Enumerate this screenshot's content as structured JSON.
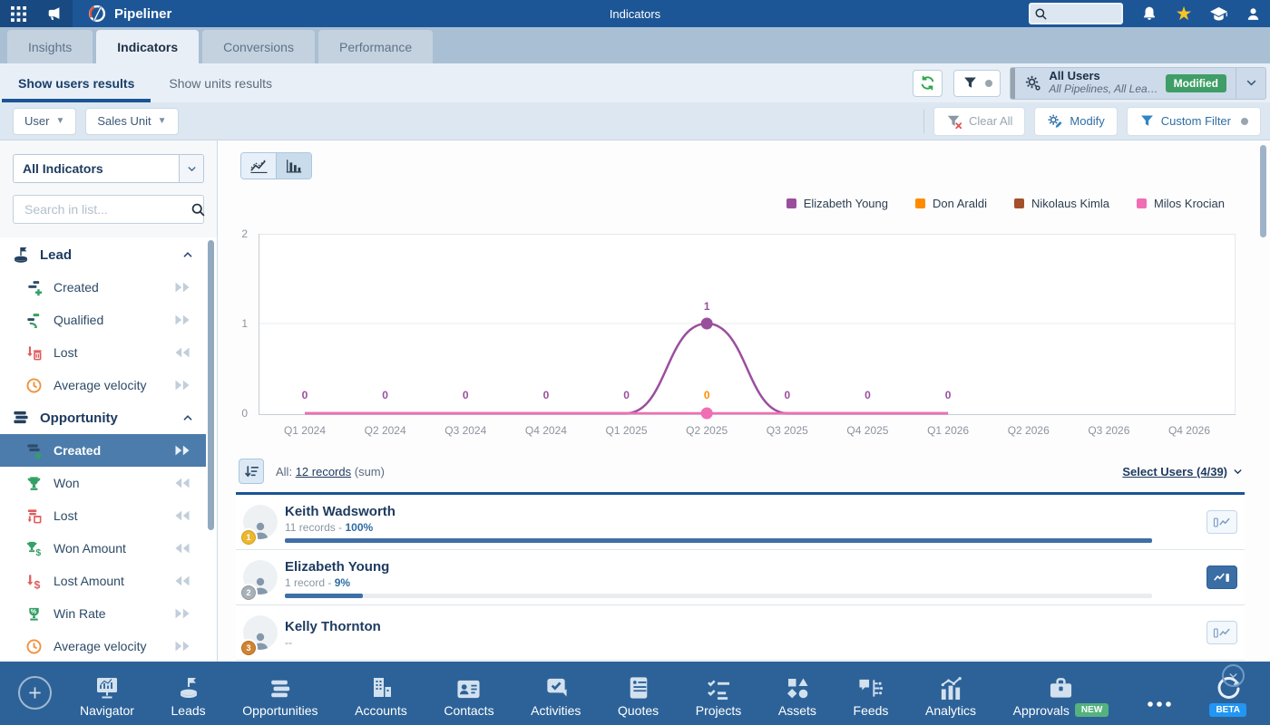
{
  "theme": {
    "topbar": "#1d5696",
    "tabbar": "#a9bfd4",
    "panel": "#e9eff6",
    "filterbar": "#dce7f1",
    "nav": "#2d6298",
    "accent": "#2e6da4",
    "selected_item": "#4b7cab",
    "modified_badge": "#3f9e67"
  },
  "topbar": {
    "app_name": "Pipeliner",
    "page_title": "Indicators",
    "search_value": ""
  },
  "tabs": [
    {
      "label": "Insights",
      "active": false
    },
    {
      "label": "Indicators",
      "active": true
    },
    {
      "label": "Conversions",
      "active": false
    },
    {
      "label": "Performance",
      "active": false
    }
  ],
  "view_tabs": [
    {
      "label": "Show users results",
      "active": true
    },
    {
      "label": "Show units results",
      "active": false
    }
  ],
  "profile_selector": {
    "title": "All Users",
    "subtitle": "All Pipelines, All Lea…",
    "badge": "Modified"
  },
  "filter_bar": {
    "field_buttons": [
      {
        "label": "User"
      },
      {
        "label": "Sales Unit"
      }
    ],
    "actions": [
      {
        "label": "Clear All",
        "disabled": true
      },
      {
        "label": "Modify",
        "disabled": false
      },
      {
        "label": "Custom Filter",
        "disabled": false,
        "dot": true
      }
    ]
  },
  "sidebar": {
    "indicator_select": "All Indicators",
    "search_placeholder": "Search in list...",
    "sections": [
      {
        "label": "Lead",
        "icon": "flag-base",
        "items": [
          {
            "label": "Created",
            "icon": "lead-created",
            "arrows": "right",
            "selected": false
          },
          {
            "label": "Qualified",
            "icon": "lead-qualified",
            "arrows": "right",
            "selected": false
          },
          {
            "label": "Lost",
            "icon": "lead-lost",
            "arrows": "left",
            "selected": false
          },
          {
            "label": "Average velocity",
            "icon": "clock",
            "arrows": "right",
            "selected": false
          }
        ]
      },
      {
        "label": "Opportunity",
        "icon": "stacked-bars",
        "items": [
          {
            "label": "Created",
            "icon": "opp-created",
            "arrows": "right",
            "selected": true
          },
          {
            "label": "Won",
            "icon": "trophy",
            "arrows": "left",
            "selected": false
          },
          {
            "label": "Lost",
            "icon": "opp-lost",
            "arrows": "left",
            "selected": false
          },
          {
            "label": "Won Amount",
            "icon": "trophy-dollar",
            "arrows": "left",
            "selected": false
          },
          {
            "label": "Lost Amount",
            "icon": "arrow-dollar",
            "arrows": "left",
            "selected": false
          },
          {
            "label": "Win Rate",
            "icon": "trophy-percent",
            "arrows": "right",
            "selected": false
          },
          {
            "label": "Average velocity",
            "icon": "clock",
            "arrows": "right",
            "selected": false
          }
        ]
      }
    ]
  },
  "chart_data": {
    "type": "line",
    "x": [
      "Q1 2024",
      "Q2 2024",
      "Q3 2024",
      "Q4 2024",
      "Q1 2025",
      "Q2 2025",
      "Q3 2025",
      "Q4 2025",
      "Q1 2026",
      "Q2 2026",
      "Q3 2026",
      "Q4 2026"
    ],
    "ylim": [
      0,
      2
    ],
    "yticks": [
      0,
      1,
      2
    ],
    "series": [
      {
        "name": "Elizabeth Young",
        "color": "#9a4f9d",
        "values": [
          0,
          0,
          0,
          0,
          0,
          1,
          0,
          0,
          0,
          null,
          null,
          null
        ]
      },
      {
        "name": "Don Araldi",
        "color": "#ff8c00",
        "values": [
          0,
          0,
          0,
          0,
          0,
          0,
          0,
          0,
          0,
          null,
          null,
          null
        ]
      },
      {
        "name": "Nikolaus Kimla",
        "color": "#a3512b",
        "values": [
          0,
          0,
          0,
          0,
          0,
          0,
          0,
          0,
          0,
          null,
          null,
          null
        ]
      },
      {
        "name": "Milos Krocian",
        "color": "#f06eb4",
        "values": [
          0,
          0,
          0,
          0,
          0,
          0,
          0,
          0,
          0,
          null,
          null,
          null
        ]
      }
    ],
    "visible_lines": [
      0,
      3
    ],
    "markers": [
      {
        "series": 0,
        "x": 5,
        "value": 1
      },
      {
        "series": 3,
        "x": 5,
        "value": 0
      }
    ],
    "point_labels": [
      {
        "x": 0,
        "series": 0,
        "text": "0"
      },
      {
        "x": 1,
        "series": 0,
        "text": "0"
      },
      {
        "x": 2,
        "series": 0,
        "text": "0"
      },
      {
        "x": 3,
        "series": 0,
        "text": "0"
      },
      {
        "x": 4,
        "series": 0,
        "text": "0"
      },
      {
        "x": 5,
        "series": 1,
        "text": "0"
      },
      {
        "x": 5,
        "series": 0,
        "text": "1",
        "at_value": 1
      },
      {
        "x": 6,
        "series": 0,
        "text": "0"
      },
      {
        "x": 7,
        "series": 0,
        "text": "0"
      },
      {
        "x": 8,
        "series": 0,
        "text": "0"
      }
    ],
    "legend_position": "top-right",
    "grid": true
  },
  "records_bar": {
    "prefix": "All:",
    "link": "12 records",
    "suffix": "(sum)",
    "select_users": "Select Users (4/39)"
  },
  "users": [
    {
      "rank": "1",
      "name": "Keith Wadsworth",
      "stats": "11 records - ",
      "percent": "100%",
      "bar": 100,
      "chart_active": false
    },
    {
      "rank": "2",
      "name": "Elizabeth Young",
      "stats": "1 record - ",
      "percent": "9%",
      "bar": 9,
      "chart_active": true
    },
    {
      "rank": "3",
      "name": "Kelly Thornton",
      "stats": "--",
      "percent": "",
      "bar": null,
      "chart_active": false
    }
  ],
  "bottom_nav": {
    "items": [
      {
        "label": "Navigator",
        "icon": "nav-navigator"
      },
      {
        "label": "Leads",
        "icon": "nav-leads"
      },
      {
        "label": "Opportunities",
        "icon": "nav-opps"
      },
      {
        "label": "Accounts",
        "icon": "nav-accounts"
      },
      {
        "label": "Contacts",
        "icon": "nav-contacts"
      },
      {
        "label": "Activities",
        "icon": "nav-activities"
      },
      {
        "label": "Quotes",
        "icon": "nav-quotes"
      },
      {
        "label": "Projects",
        "icon": "nav-projects"
      },
      {
        "label": "Assets",
        "icon": "nav-assets"
      },
      {
        "label": "Feeds",
        "icon": "nav-feeds"
      },
      {
        "label": "Analytics",
        "icon": "nav-analytics"
      },
      {
        "label": "Approvals",
        "icon": "nav-approvals",
        "badge": "NEW",
        "badge_color": "#53b27e"
      },
      {
        "label": "",
        "icon": "nav-more"
      },
      {
        "label": "",
        "icon": "nav-voyager",
        "badge": "BETA",
        "badge_color": "#2196f3"
      }
    ]
  }
}
